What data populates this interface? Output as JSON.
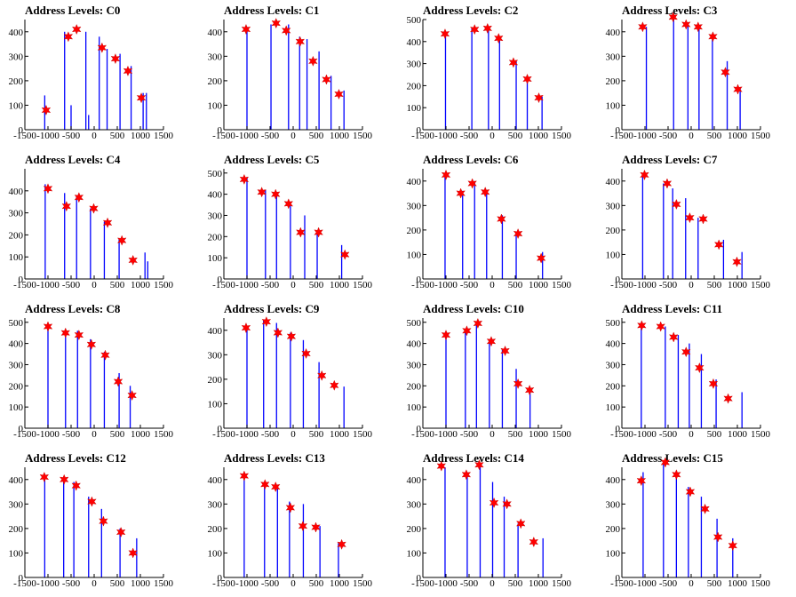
{
  "figure": {
    "title_prefix": "Address Levels:",
    "x_ticks": [
      -1500,
      -1000,
      -500,
      0,
      500,
      1000,
      1500
    ],
    "x_tick_labels": [
      "-1500",
      "-1000",
      "-500",
      "0",
      "500",
      "1000",
      "1500"
    ],
    "colors": {
      "histogram": "#0000ff",
      "peak_marker": "#ff0000",
      "axis": "#000000"
    }
  },
  "chart_data": [
    {
      "type": "bar",
      "title": "Address Levels: C0",
      "xlim": [
        -1500,
        1500
      ],
      "ylim": [
        0,
        450
      ],
      "y_ticks": [
        0,
        100,
        200,
        300,
        400
      ],
      "bars": [
        [
          -1070,
          140
        ],
        [
          -640,
          400
        ],
        [
          -500,
          100
        ],
        [
          -180,
          400
        ],
        [
          -120,
          60
        ],
        [
          110,
          380
        ],
        [
          280,
          330
        ],
        [
          560,
          310
        ],
        [
          800,
          260
        ],
        [
          1060,
          150
        ],
        [
          1130,
          150
        ]
      ],
      "markers": [
        [
          -1040,
          80
        ],
        [
          -560,
          380
        ],
        [
          -380,
          410
        ],
        [
          170,
          335
        ],
        [
          460,
          290
        ],
        [
          730,
          240
        ],
        [
          1020,
          130
        ]
      ]
    },
    {
      "type": "bar",
      "title": "Address Levels: C1",
      "xlim": [
        -1500,
        1500
      ],
      "ylim": [
        0,
        450
      ],
      "y_ticks": [
        0,
        100,
        200,
        300,
        400
      ],
      "bars": [
        [
          -1000,
          420
        ],
        [
          -480,
          430
        ],
        [
          -100,
          430
        ],
        [
          140,
          380
        ],
        [
          300,
          370
        ],
        [
          560,
          320
        ],
        [
          820,
          220
        ],
        [
          1100,
          160
        ]
      ],
      "markers": [
        [
          -1020,
          410
        ],
        [
          -370,
          435
        ],
        [
          -150,
          405
        ],
        [
          150,
          360
        ],
        [
          430,
          280
        ],
        [
          720,
          205
        ],
        [
          990,
          145
        ]
      ]
    },
    {
      "type": "bar",
      "title": "Address Levels: C2",
      "xlim": [
        -1500,
        1500
      ],
      "ylim": [
        0,
        500
      ],
      "y_ticks": [
        0,
        100,
        200,
        300,
        400,
        500
      ],
      "bars": [
        [
          -1010,
          440
        ],
        [
          -440,
          460
        ],
        [
          -80,
          460
        ],
        [
          160,
          420
        ],
        [
          520,
          310
        ],
        [
          760,
          230
        ],
        [
          1080,
          150
        ]
      ],
      "markers": [
        [
          -1020,
          435
        ],
        [
          -380,
          455
        ],
        [
          -100,
          460
        ],
        [
          140,
          415
        ],
        [
          460,
          305
        ],
        [
          760,
          230
        ],
        [
          1010,
          145
        ]
      ]
    },
    {
      "type": "bar",
      "title": "Address Levels: C3",
      "xlim": [
        -1500,
        1500
      ],
      "ylim": [
        0,
        450
      ],
      "y_ticks": [
        0,
        100,
        200,
        300,
        400
      ],
      "bars": [
        [
          -970,
          420
        ],
        [
          -380,
          460
        ],
        [
          -70,
          430
        ],
        [
          170,
          420
        ],
        [
          460,
          380
        ],
        [
          780,
          280
        ],
        [
          1060,
          170
        ]
      ],
      "markers": [
        [
          -1050,
          420
        ],
        [
          -390,
          460
        ],
        [
          -110,
          430
        ],
        [
          150,
          420
        ],
        [
          470,
          380
        ],
        [
          740,
          235
        ],
        [
          1010,
          165
        ]
      ]
    },
    {
      "type": "bar",
      "title": "Address Levels: C4",
      "xlim": [
        -1500,
        1500
      ],
      "ylim": [
        0,
        500
      ],
      "y_ticks": [
        0,
        100,
        200,
        300,
        400
      ],
      "bars": [
        [
          -1060,
          430
        ],
        [
          -640,
          390
        ],
        [
          -380,
          380
        ],
        [
          -80,
          320
        ],
        [
          220,
          260
        ],
        [
          540,
          180
        ],
        [
          1100,
          120
        ],
        [
          1160,
          80
        ]
      ],
      "markers": [
        [
          -1000,
          410
        ],
        [
          -600,
          330
        ],
        [
          -330,
          370
        ],
        [
          -10,
          320
        ],
        [
          290,
          255
        ],
        [
          600,
          175
        ],
        [
          840,
          85
        ]
      ]
    },
    {
      "type": "bar",
      "title": "Address Levels: C5",
      "xlim": [
        -1500,
        1500
      ],
      "ylim": [
        0,
        520
      ],
      "y_ticks": [
        0,
        100,
        200,
        300,
        400,
        500
      ],
      "bars": [
        [
          -1000,
          480
        ],
        [
          -600,
          420
        ],
        [
          -360,
          410
        ],
        [
          -60,
          360
        ],
        [
          250,
          300
        ],
        [
          520,
          220
        ],
        [
          1050,
          160
        ]
      ],
      "markers": [
        [
          -1060,
          470
        ],
        [
          -680,
          410
        ],
        [
          -380,
          400
        ],
        [
          -100,
          355
        ],
        [
          160,
          220
        ],
        [
          550,
          220
        ],
        [
          1120,
          115
        ]
      ]
    },
    {
      "type": "bar",
      "title": "Address Levels: C6",
      "xlim": [
        -1500,
        1500
      ],
      "ylim": [
        0,
        450
      ],
      "y_ticks": [
        0,
        100,
        200,
        300,
        400
      ],
      "bars": [
        [
          -1020,
          430
        ],
        [
          -640,
          360
        ],
        [
          -380,
          400
        ],
        [
          -120,
          360
        ],
        [
          220,
          260
        ],
        [
          520,
          190
        ],
        [
          1090,
          110
        ]
      ],
      "markers": [
        [
          -1000,
          425
        ],
        [
          -680,
          350
        ],
        [
          -430,
          390
        ],
        [
          -150,
          355
        ],
        [
          200,
          245
        ],
        [
          560,
          185
        ],
        [
          1060,
          85
        ]
      ]
    },
    {
      "type": "bar",
      "title": "Address Levels: C7",
      "xlim": [
        -1500,
        1500
      ],
      "ylim": [
        0,
        450
      ],
      "y_ticks": [
        0,
        100,
        200,
        300,
        400
      ],
      "bars": [
        [
          -1050,
          430
        ],
        [
          -600,
          390
        ],
        [
          -400,
          370
        ],
        [
          -120,
          330
        ],
        [
          150,
          250
        ],
        [
          700,
          160
        ],
        [
          1100,
          110
        ]
      ],
      "markers": [
        [
          -1010,
          425
        ],
        [
          -520,
          390
        ],
        [
          -320,
          305
        ],
        [
          -30,
          250
        ],
        [
          260,
          245
        ],
        [
          600,
          140
        ],
        [
          990,
          70
        ]
      ]
    },
    {
      "type": "bar",
      "title": "Address Levels: C8",
      "xlim": [
        -1500,
        1500
      ],
      "ylim": [
        0,
        520
      ],
      "y_ticks": [
        0,
        100,
        200,
        300,
        400,
        500
      ],
      "bars": [
        [
          -1000,
          490
        ],
        [
          -620,
          460
        ],
        [
          -360,
          460
        ],
        [
          -80,
          420
        ],
        [
          220,
          360
        ],
        [
          540,
          260
        ],
        [
          780,
          200
        ]
      ],
      "markers": [
        [
          -1000,
          480
        ],
        [
          -620,
          450
        ],
        [
          -330,
          440
        ],
        [
          -60,
          395
        ],
        [
          240,
          345
        ],
        [
          520,
          220
        ],
        [
          820,
          155
        ]
      ]
    },
    {
      "type": "bar",
      "title": "Address Levels: C9",
      "xlim": [
        -1500,
        1500
      ],
      "ylim": [
        0,
        450
      ],
      "y_ticks": [
        0,
        100,
        200,
        300,
        400
      ],
      "bars": [
        [
          -1000,
          410
        ],
        [
          -640,
          440
        ],
        [
          -360,
          430
        ],
        [
          -60,
          390
        ],
        [
          220,
          360
        ],
        [
          560,
          270
        ],
        [
          1100,
          170
        ]
      ],
      "markers": [
        [
          -1020,
          410
        ],
        [
          -580,
          435
        ],
        [
          -330,
          390
        ],
        [
          -40,
          375
        ],
        [
          280,
          305
        ],
        [
          620,
          215
        ],
        [
          890,
          175
        ]
      ]
    },
    {
      "type": "bar",
      "title": "Address Levels: C10",
      "xlim": [
        -1500,
        1500
      ],
      "ylim": [
        0,
        520
      ],
      "y_ticks": [
        0,
        100,
        200,
        300,
        400,
        500
      ],
      "bars": [
        [
          -1000,
          450
        ],
        [
          -580,
          470
        ],
        [
          -340,
          500
        ],
        [
          -60,
          420
        ],
        [
          220,
          370
        ],
        [
          520,
          280
        ],
        [
          820,
          180
        ]
      ],
      "markers": [
        [
          -1000,
          440
        ],
        [
          -550,
          460
        ],
        [
          -310,
          495
        ],
        [
          -20,
          410
        ],
        [
          280,
          365
        ],
        [
          560,
          210
        ],
        [
          810,
          180
        ]
      ]
    },
    {
      "type": "bar",
      "title": "Address Levels: C11",
      "xlim": [
        -1500,
        1500
      ],
      "ylim": [
        0,
        520
      ],
      "y_ticks": [
        0,
        100,
        200,
        300,
        400,
        500
      ],
      "bars": [
        [
          -1080,
          490
        ],
        [
          -560,
          480
        ],
        [
          -280,
          440
        ],
        [
          -40,
          400
        ],
        [
          220,
          350
        ],
        [
          540,
          230
        ],
        [
          1100,
          170
        ]
      ],
      "markers": [
        [
          -1070,
          485
        ],
        [
          -660,
          480
        ],
        [
          -380,
          430
        ],
        [
          -110,
          360
        ],
        [
          180,
          285
        ],
        [
          480,
          210
        ],
        [
          800,
          140
        ]
      ]
    },
    {
      "type": "bar",
      "title": "Address Levels: C12",
      "xlim": [
        -1500,
        1500
      ],
      "ylim": [
        0,
        450
      ],
      "y_ticks": [
        0,
        100,
        200,
        300,
        400
      ],
      "bars": [
        [
          -1070,
          420
        ],
        [
          -660,
          400
        ],
        [
          -440,
          390
        ],
        [
          -120,
          330
        ],
        [
          160,
          280
        ],
        [
          560,
          200
        ],
        [
          920,
          160
        ]
      ],
      "markers": [
        [
          -1080,
          410
        ],
        [
          -650,
          400
        ],
        [
          -390,
          375
        ],
        [
          -50,
          310
        ],
        [
          200,
          230
        ],
        [
          580,
          185
        ],
        [
          840,
          100
        ]
      ]
    },
    {
      "type": "bar",
      "title": "Address Levels: C13",
      "xlim": [
        -1500,
        1500
      ],
      "ylim": [
        0,
        450
      ],
      "y_ticks": [
        0,
        100,
        200,
        300,
        400
      ],
      "bars": [
        [
          -1060,
          420
        ],
        [
          -620,
          380
        ],
        [
          -340,
          370
        ],
        [
          -80,
          310
        ],
        [
          220,
          300
        ],
        [
          580,
          210
        ],
        [
          980,
          140
        ]
      ],
      "markers": [
        [
          -1060,
          415
        ],
        [
          -610,
          380
        ],
        [
          -380,
          370
        ],
        [
          -60,
          285
        ],
        [
          210,
          210
        ],
        [
          490,
          205
        ],
        [
          1050,
          135
        ]
      ]
    },
    {
      "type": "bar",
      "title": "Address Levels: C14",
      "xlim": [
        -1500,
        1500
      ],
      "ylim": [
        0,
        450
      ],
      "y_ticks": [
        0,
        100,
        200,
        300,
        400
      ],
      "bars": [
        [
          -1020,
          450
        ],
        [
          -540,
          430
        ],
        [
          -260,
          460
        ],
        [
          10,
          390
        ],
        [
          260,
          330
        ],
        [
          560,
          220
        ],
        [
          1100,
          160
        ]
      ],
      "markers": [
        [
          -1100,
          455
        ],
        [
          -560,
          420
        ],
        [
          -280,
          460
        ],
        [
          40,
          305
        ],
        [
          320,
          300
        ],
        [
          620,
          220
        ],
        [
          900,
          145
        ]
      ]
    },
    {
      "type": "bar",
      "title": "Address Levels: C15",
      "xlim": [
        -1500,
        1500
      ],
      "ylim": [
        0,
        450
      ],
      "y_ticks": [
        0,
        100,
        200,
        300,
        400
      ],
      "bars": [
        [
          -1040,
          430
        ],
        [
          -600,
          470
        ],
        [
          -320,
          420
        ],
        [
          -60,
          370
        ],
        [
          220,
          330
        ],
        [
          560,
          240
        ],
        [
          900,
          160
        ]
      ],
      "markers": [
        [
          -1080,
          395
        ],
        [
          -560,
          470
        ],
        [
          -320,
          420
        ],
        [
          -20,
          350
        ],
        [
          300,
          280
        ],
        [
          580,
          165
        ],
        [
          900,
          130
        ]
      ]
    }
  ]
}
